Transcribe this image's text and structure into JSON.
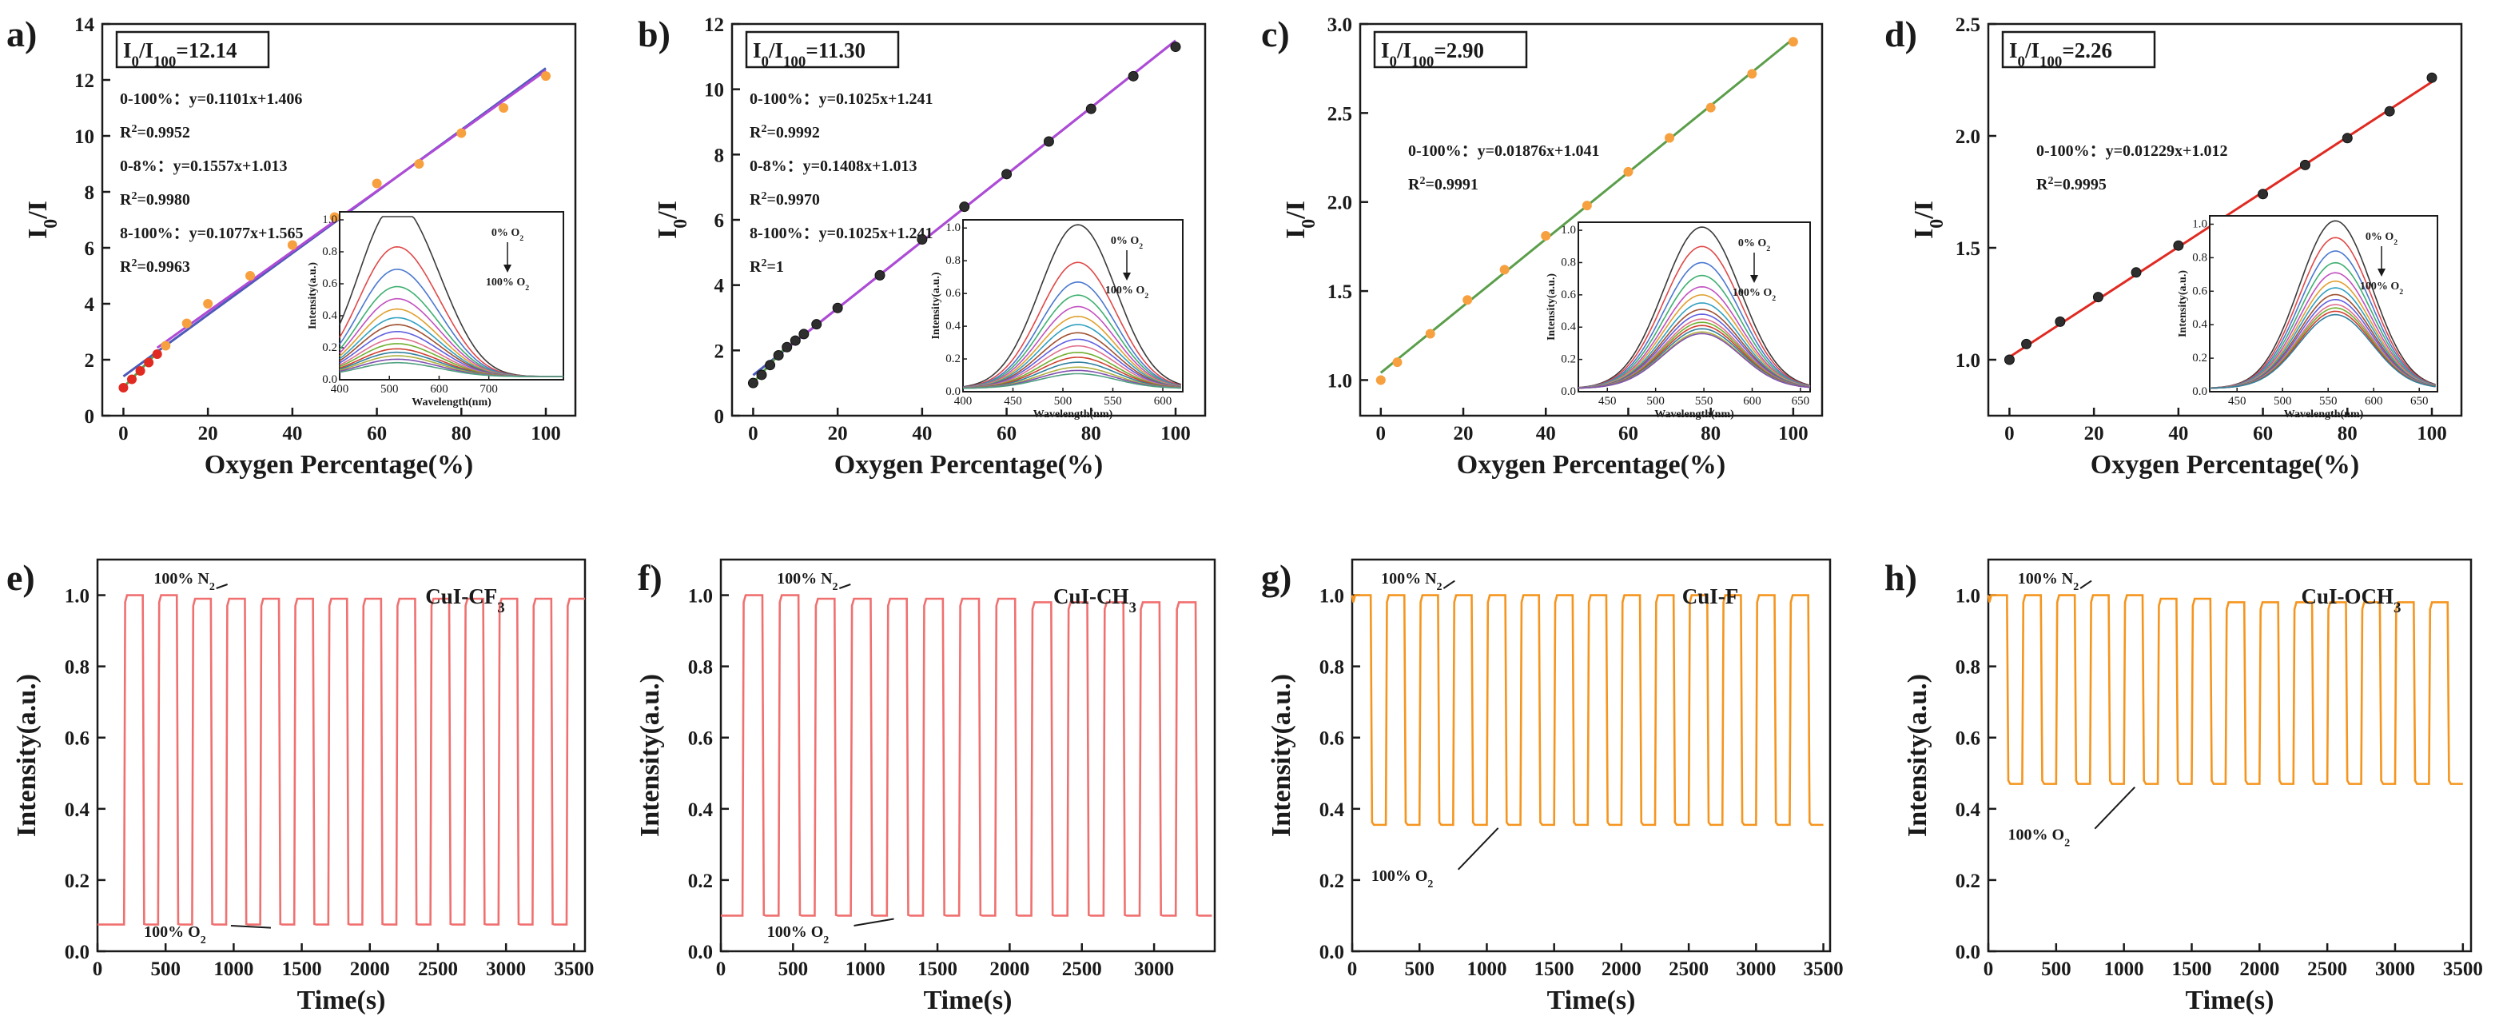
{
  "figure": {
    "colors": {
      "axis": "#1a1a1a",
      "cycle_red": "#f07070",
      "cycle_orange": "#f5951e",
      "fit_blue": "#4d5ab8",
      "fit_green": "#5b9e4a",
      "fit_purple": "#b04ad6",
      "fit_red": "#e02a22",
      "point_orange": "#f7a040",
      "point_black": "#2e2e2e"
    }
  },
  "chart_data": [
    {
      "panel": "a)",
      "type": "scatter",
      "xlabel": "Oxygen Percentage(%)",
      "ylabel": "I0/I",
      "xlim": [
        -5,
        107
      ],
      "ylim": [
        0,
        14
      ],
      "xticks": [
        0,
        20,
        40,
        60,
        80,
        100
      ],
      "yticks": [
        0,
        2,
        4,
        6,
        8,
        10,
        12,
        14
      ],
      "ratio_label": "I0/I100=12.14",
      "points_x": [
        0,
        2,
        4,
        6,
        8,
        10,
        15,
        20,
        30,
        40,
        50,
        60,
        70,
        80,
        90,
        100
      ],
      "points_y": [
        1.0,
        1.3,
        1.6,
        1.9,
        2.2,
        2.5,
        3.3,
        4.0,
        5.0,
        6.1,
        7.1,
        8.3,
        9.0,
        10.1,
        11.0,
        12.14
      ],
      "fits": [
        {
          "label": "0-100%",
          "slope": 0.1101,
          "intercept": 1.406,
          "range": [
            0,
            100
          ],
          "r2": "0.9952"
        },
        {
          "label": "0-8%",
          "slope": 0.1557,
          "intercept": 1.013,
          "range": [
            0,
            8
          ],
          "r2": "0.9980"
        },
        {
          "label": "8-100%",
          "slope": 0.1077,
          "intercept": 1.565,
          "range": [
            8,
            100
          ],
          "r2": "0.9963"
        }
      ],
      "inset": {
        "xlabel": "Wavelength(nm)",
        "ylabel": "Intensity(a.u.)",
        "xlim": [
          400,
          850
        ],
        "xticks": [
          400,
          500,
          600,
          700
        ],
        "ylim": [
          0,
          1.05
        ],
        "yticks": [
          0.0,
          0.2,
          0.4,
          0.6,
          0.8,
          1.0
        ],
        "peak": 505,
        "width": 70,
        "top": "0% O2",
        "bottom": "100% O2",
        "peaks": [
          1.0,
          0.75,
          0.62,
          0.52,
          0.45,
          0.39,
          0.34,
          0.3,
          0.26,
          0.22,
          0.19,
          0.16,
          0.14,
          0.12,
          0.1,
          0.08
        ]
      }
    },
    {
      "panel": "b)",
      "type": "scatter",
      "xlabel": "Oxygen Percentage(%)",
      "ylabel": "I0/I",
      "xlim": [
        -5,
        107
      ],
      "ylim": [
        0,
        12
      ],
      "xticks": [
        0,
        20,
        40,
        60,
        80,
        100
      ],
      "yticks": [
        0,
        2,
        4,
        6,
        8,
        10,
        12
      ],
      "ratio_label": "I0/I100=11.30",
      "points_x": [
        0,
        2,
        4,
        6,
        8,
        10,
        12,
        15,
        20,
        30,
        40,
        50,
        60,
        70,
        80,
        90,
        100
      ],
      "points_y": [
        1.0,
        1.25,
        1.55,
        1.85,
        2.1,
        2.3,
        2.5,
        2.8,
        3.3,
        4.3,
        5.4,
        6.4,
        7.4,
        8.4,
        9.4,
        10.4,
        11.3
      ],
      "fits": [
        {
          "label": "0-100%",
          "slope": 0.1025,
          "intercept": 1.241,
          "range": [
            0,
            100
          ],
          "r2": "0.9992"
        },
        {
          "label": "0-8%",
          "slope": 0.1408,
          "intercept": 1.013,
          "range": [
            0,
            8
          ],
          "r2": "0.9970"
        },
        {
          "label": "8-100%",
          "slope": 0.1025,
          "intercept": 1.241,
          "range": [
            8,
            100
          ],
          "r2": "1"
        }
      ],
      "inset": {
        "xlabel": "Wavelength(nm)",
        "ylabel": "Intensity(a.u.)",
        "xlim": [
          400,
          620
        ],
        "xticks": [
          400,
          450,
          500,
          550,
          600
        ],
        "ylim": [
          0,
          1.05
        ],
        "yticks": [
          0.0,
          0.2,
          0.4,
          0.6,
          0.8,
          1.0
        ],
        "peak": 515,
        "width": 38,
        "top": "0% O2",
        "bottom": "100% O2",
        "peaks": [
          1.0,
          0.77,
          0.65,
          0.57,
          0.5,
          0.44,
          0.39,
          0.34,
          0.3,
          0.26,
          0.22,
          0.19,
          0.16,
          0.13,
          0.11,
          0.09
        ]
      }
    },
    {
      "panel": "c)",
      "type": "scatter",
      "xlabel": "Oxygen Percentage(%)",
      "ylabel": "I0/I",
      "xlim": [
        -5,
        107
      ],
      "ylim": [
        0.8,
        3.0
      ],
      "xticks": [
        0,
        20,
        40,
        60,
        80,
        100
      ],
      "yticks": [
        1.0,
        1.5,
        2.0,
        2.5,
        3.0
      ],
      "ratio_label": "I0/I100=2.90",
      "points_x": [
        0,
        4,
        12,
        21,
        30,
        40,
        50,
        60,
        70,
        80,
        90,
        100
      ],
      "points_y": [
        1.0,
        1.1,
        1.26,
        1.45,
        1.62,
        1.81,
        1.98,
        2.17,
        2.36,
        2.53,
        2.72,
        2.9
      ],
      "fits": [
        {
          "label": "0-100%",
          "slope": 0.01876,
          "intercept": 1.041,
          "range": [
            0,
            100
          ],
          "r2": "0.9991"
        }
      ],
      "inset": {
        "xlabel": "Wavelength(nm)",
        "ylabel": "Intensity(a.u.)",
        "xlim": [
          420,
          660
        ],
        "xticks": [
          450,
          500,
          550,
          600,
          650
        ],
        "ylim": [
          0,
          1.05
        ],
        "yticks": [
          0.0,
          0.2,
          0.4,
          0.6,
          0.8,
          1.0
        ],
        "peak": 548,
        "width": 40,
        "top": "0% O2",
        "bottom": "100% O2",
        "peaks": [
          1.0,
          0.88,
          0.78,
          0.7,
          0.63,
          0.58,
          0.53,
          0.49,
          0.46,
          0.43,
          0.41,
          0.39,
          0.37,
          0.35,
          0.34
        ]
      }
    },
    {
      "panel": "d)",
      "type": "scatter",
      "xlabel": "Oxygen Percentage(%)",
      "ylabel": "I0/I",
      "xlim": [
        -5,
        107
      ],
      "ylim": [
        0.75,
        2.5
      ],
      "xticks": [
        0,
        20,
        40,
        60,
        80,
        100
      ],
      "yticks": [
        1.0,
        1.5,
        2.0,
        2.5
      ],
      "ratio_label": "I0/I100=2.26",
      "points_x": [
        0,
        4,
        12,
        21,
        30,
        40,
        50,
        60,
        70,
        80,
        90,
        100
      ],
      "points_y": [
        1.0,
        1.07,
        1.17,
        1.28,
        1.39,
        1.51,
        1.62,
        1.74,
        1.87,
        1.99,
        2.11,
        2.26
      ],
      "fits": [
        {
          "label": "0-100%",
          "slope": 0.01229,
          "intercept": 1.012,
          "range": [
            0,
            100
          ],
          "r2": "0.9995"
        }
      ],
      "inset": {
        "xlabel": "Wavelength(nm)",
        "ylabel": "Intensity(a.u.)",
        "xlim": [
          420,
          670
        ],
        "xticks": [
          450,
          500,
          550,
          600,
          650
        ],
        "ylim": [
          0,
          1.05
        ],
        "yticks": [
          0.0,
          0.2,
          0.4,
          0.6,
          0.8,
          1.0
        ],
        "peak": 558,
        "width": 40,
        "top": "0% O2",
        "bottom": "100% O2",
        "peaks": [
          1.0,
          0.9,
          0.82,
          0.75,
          0.69,
          0.64,
          0.6,
          0.56,
          0.53,
          0.5,
          0.48,
          0.46,
          0.44
        ]
      }
    },
    {
      "panel": "e)",
      "type": "line",
      "xlabel": "Time(s)",
      "ylabel": "Intensity(a.u.)",
      "xlim": [
        0,
        3580
      ],
      "ylim": [
        0,
        1.1
      ],
      "xticks": [
        0,
        500,
        1000,
        1500,
        2000,
        2500,
        3000,
        3500
      ],
      "yticks": [
        0.0,
        0.2,
        0.4,
        0.6,
        0.8,
        1.0
      ],
      "compound": "CuI-CF3",
      "n2_label": "100% N2",
      "o2_label": "100% O2",
      "period": 250,
      "first_on": 195,
      "cycles": 14,
      "high": [
        1.0,
        1.0,
        0.99,
        0.99,
        0.99,
        0.99,
        0.99,
        0.99,
        0.99,
        0.99,
        0.99,
        0.99,
        0.99,
        0.99
      ],
      "low": 0.075
    },
    {
      "panel": "f)",
      "type": "line",
      "xlabel": "Time(s)",
      "ylabel": "Intensity(a.u.)",
      "xlim": [
        0,
        3420
      ],
      "ylim": [
        0,
        1.1
      ],
      "xticks": [
        0,
        500,
        1000,
        1500,
        2000,
        2500,
        3000
      ],
      "yticks": [
        0.0,
        0.2,
        0.4,
        0.6,
        0.8,
        1.0
      ],
      "compound": "CuI-CH3",
      "n2_label": "100% N2",
      "o2_label": "100% O2",
      "period": 250,
      "first_on": 150,
      "cycles": 13,
      "high": [
        1.0,
        1.0,
        0.99,
        0.99,
        0.99,
        0.99,
        0.99,
        0.99,
        0.98,
        0.98,
        0.98,
        0.98,
        0.98
      ],
      "low": 0.1
    },
    {
      "panel": "g)",
      "type": "line",
      "xlabel": "Time(s)",
      "ylabel": "Intensity(a.u.)",
      "xlim": [
        0,
        3550
      ],
      "ylim": [
        0,
        1.1
      ],
      "xticks": [
        0,
        500,
        1000,
        1500,
        2000,
        2500,
        3000,
        3500
      ],
      "yticks": [
        0.0,
        0.2,
        0.4,
        0.6,
        0.8,
        1.0
      ],
      "compound": "CuI-F",
      "n2_label": "100% N2",
      "o2_label": "100% O2",
      "period": 250,
      "first_on": 0,
      "cycles": 14,
      "high": [
        1.0,
        1.0,
        1.0,
        1.0,
        1.0,
        1.0,
        1.0,
        1.0,
        1.0,
        1.0,
        1.0,
        1.0,
        1.0,
        1.0
      ],
      "low": 0.355
    },
    {
      "panel": "h)",
      "type": "line",
      "xlabel": "Time(s)",
      "ylabel": "Intensity(a.u.)",
      "xlim": [
        0,
        3560
      ],
      "ylim": [
        0,
        1.1
      ],
      "xticks": [
        0,
        500,
        1000,
        1500,
        2000,
        2500,
        3000,
        3500
      ],
      "yticks": [
        0.0,
        0.2,
        0.4,
        0.6,
        0.8,
        1.0
      ],
      "compound": "CuI-OCH3",
      "n2_label": "100% N2",
      "o2_label": "100% O2",
      "period": 250,
      "first_on": 0,
      "cycles": 14,
      "high": [
        1.0,
        1.0,
        1.0,
        1.0,
        1.0,
        0.99,
        0.99,
        0.98,
        0.98,
        0.98,
        0.98,
        0.98,
        0.98,
        0.98
      ],
      "low": 0.47
    }
  ]
}
